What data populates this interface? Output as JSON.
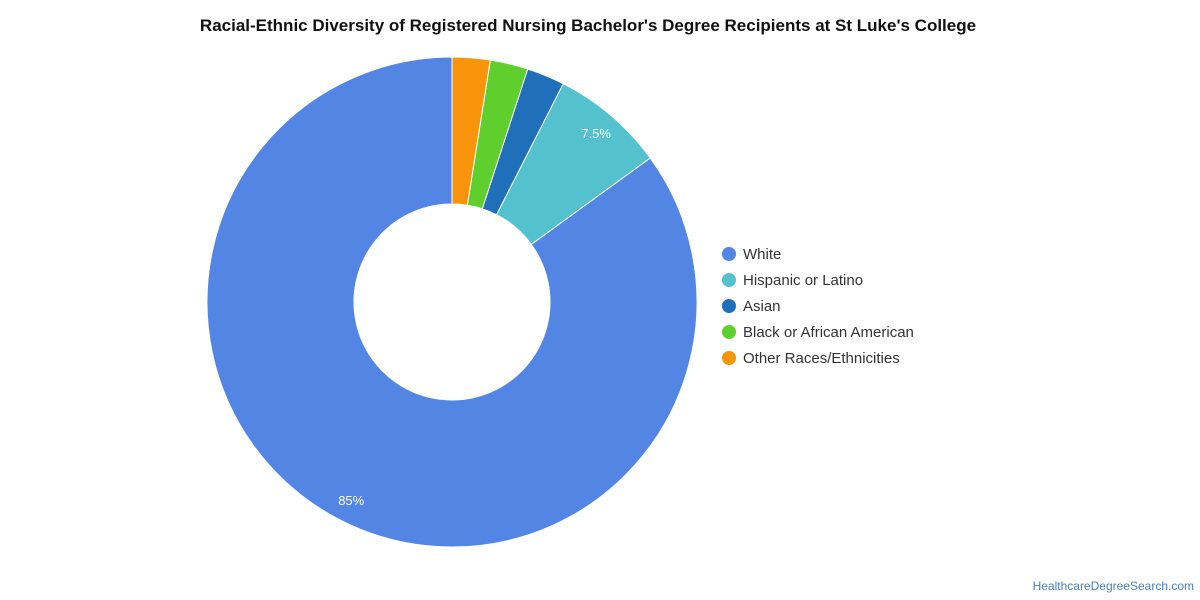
{
  "chart_data": {
    "type": "pie",
    "title": "Racial-Ethnic Diversity of Registered Nursing Bachelor's Degree Recipients at St Luke's College",
    "categories": [
      "White",
      "Hispanic or Latino",
      "Asian",
      "Black or African American",
      "Other Races/Ethnicities"
    ],
    "values": [
      85,
      7.5,
      2.5,
      2.5,
      2.5
    ],
    "data_labels": [
      "85%",
      "7.5%",
      "",
      "",
      ""
    ],
    "colors": [
      "#5386e4",
      "#54c1cf",
      "#1f6fbb",
      "#5fcf2e",
      "#f7940a"
    ],
    "donut": true,
    "legend_position": "right"
  },
  "source_text": "HealthcareDegreeSearch.com"
}
